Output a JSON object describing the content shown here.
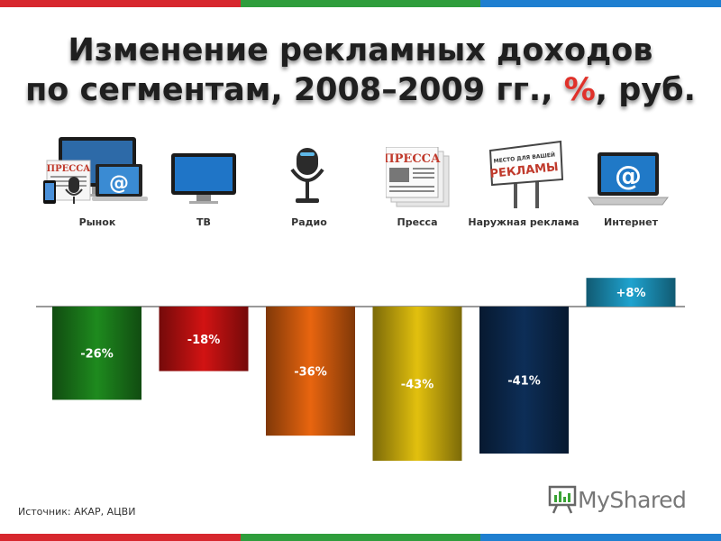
{
  "title": {
    "line1": "Изменение рекламных доходов",
    "line2_prefix": "по сегментам, 2008–2009 гг., ",
    "line2_highlight": "%",
    "line2_suffix": ", руб."
  },
  "icons": {
    "rynok": {
      "name": "devices-collage-icon",
      "press_text": "ПРЕССА",
      "at_text": "@"
    },
    "tv": {
      "name": "monitor-icon"
    },
    "radio": {
      "name": "microphone-icon"
    },
    "pressa": {
      "name": "newspaper-icon",
      "text": "ПРЕССА"
    },
    "outdoor": {
      "name": "billboard-icon",
      "small_text": "МЕСТО ДЛЯ ВАШЕЙ",
      "big_text": "РЕКЛАМЫ"
    },
    "internet": {
      "name": "laptop-icon",
      "text": "@"
    }
  },
  "chart_data": {
    "type": "bar",
    "categories": [
      "Рынок",
      "ТВ",
      "Радио",
      "Пресса",
      "Наружная реклама",
      "Интернет"
    ],
    "values": [
      -26,
      -18,
      -36,
      -43,
      -41,
      8
    ],
    "value_labels": [
      "-26%",
      "-18%",
      "-36%",
      "-43%",
      "-41%",
      "+8%"
    ],
    "bar_colors": [
      "#1e8a1e",
      "#d21313",
      "#e8650f",
      "#e2c00e",
      "#0d2e57",
      "#1fa3cf"
    ],
    "ylim": [
      -45,
      10
    ],
    "title": "Изменение рекламных доходов по сегментам, 2008–2009 гг., %, руб.",
    "xlabel": "",
    "ylabel": "",
    "grid": false,
    "legend": "none"
  },
  "source": "Источник: АКАР, АЦВИ",
  "watermark": {
    "text": "MyShared"
  },
  "stripe_colors": [
    "#d7272e",
    "#2f9d3c",
    "#1f7fd0"
  ]
}
